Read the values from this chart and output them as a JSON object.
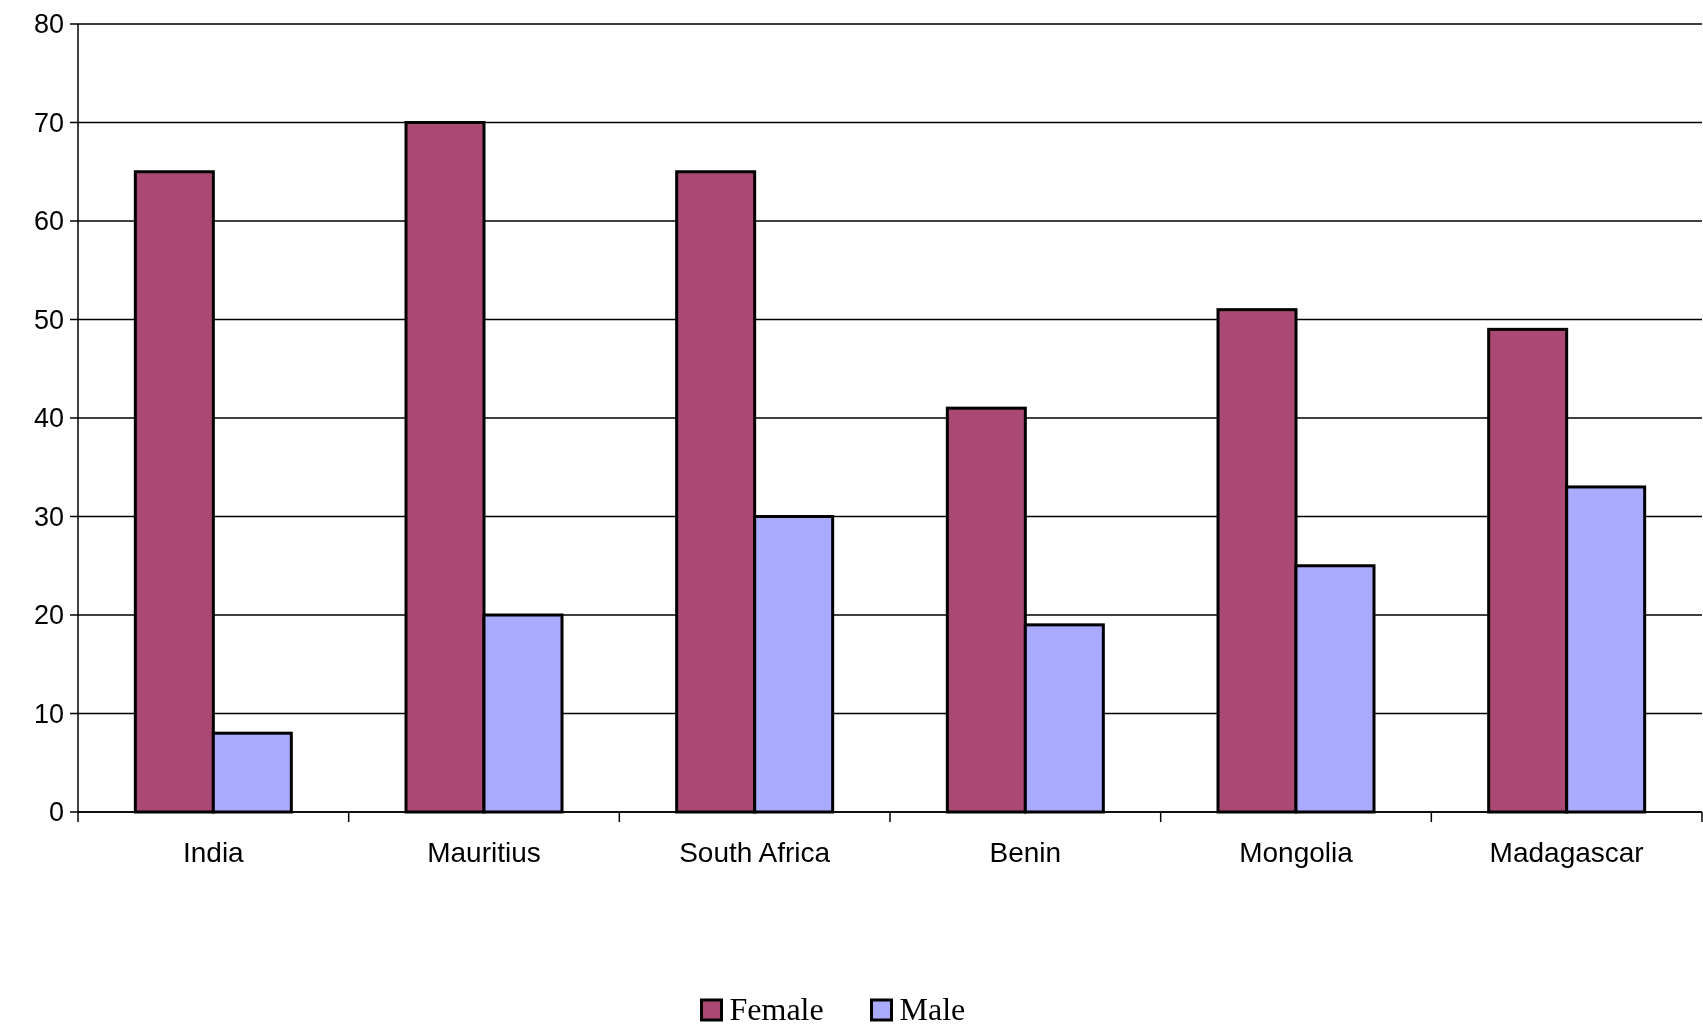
{
  "chart_data": {
    "type": "bar",
    "categories": [
      "India",
      "Mauritius",
      "South Africa",
      "Benin",
      "Mongolia",
      "Madagascar"
    ],
    "series": [
      {
        "name": "Female",
        "color": "#aa4a74",
        "values": [
          65,
          70,
          65,
          41,
          51,
          49
        ]
      },
      {
        "name": "Male",
        "color": "#aaaaff",
        "values": [
          8,
          20,
          30,
          19,
          25,
          33
        ]
      }
    ],
    "ylim": [
      0,
      80
    ],
    "yticks": [
      0,
      10,
      20,
      30,
      40,
      50,
      60,
      70,
      80
    ],
    "grid": "y",
    "legend": "bottom"
  }
}
